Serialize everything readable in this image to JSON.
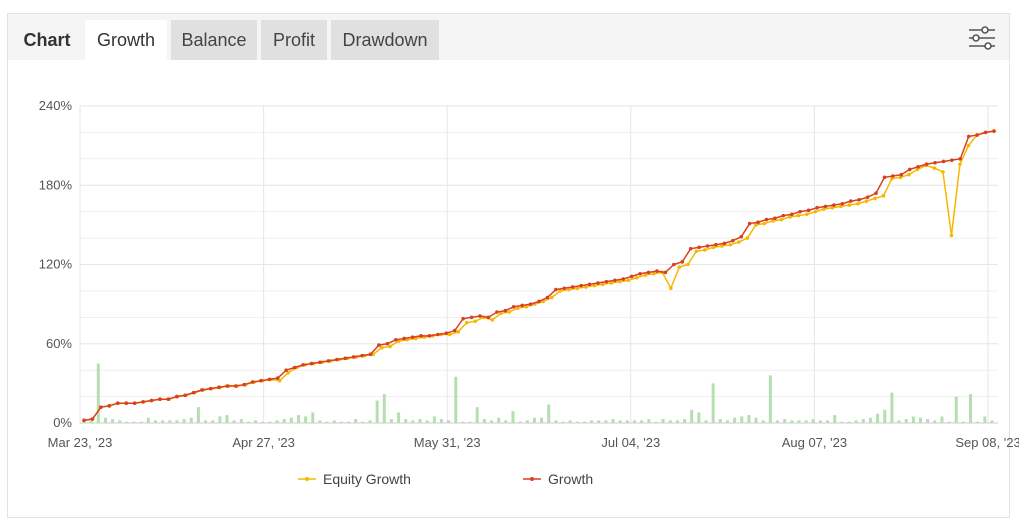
{
  "tabs": {
    "chart": "Chart",
    "growth": "Growth",
    "balance": "Balance",
    "profit": "Profit",
    "drawdown": "Drawdown"
  },
  "settings_icon": "sliders-icon",
  "colors": {
    "equity": "#f5b800",
    "growth": "#d9401f",
    "bars": "#b5dfb0",
    "grid": "#e6e6e6"
  },
  "chart_data": {
    "type": "line",
    "ylim": [
      0,
      240
    ],
    "yticks": [
      "240%",
      "180%",
      "120%",
      "60%",
      "0%"
    ],
    "xticks": [
      "Mar 23, '23",
      "Apr 27, '23",
      "May 31, '23",
      "Jul 04, '23",
      "Aug 07, '23",
      "Sep 08, '23"
    ],
    "grid": true,
    "legend_position": "bottom",
    "series": [
      {
        "name": "Equity Growth",
        "values": [
          2,
          3,
          12,
          13,
          15,
          15,
          15,
          16,
          17,
          18,
          18,
          20,
          21,
          23,
          25,
          26,
          27,
          28,
          28,
          29,
          31,
          32,
          33,
          32,
          38,
          42,
          44,
          45,
          46,
          47,
          48,
          49,
          50,
          51,
          52,
          57,
          58,
          62,
          63,
          64,
          65,
          66,
          67,
          67,
          69,
          76,
          77,
          80,
          78,
          83,
          84,
          87,
          88,
          90,
          92,
          95,
          100,
          101,
          102,
          103,
          104,
          105,
          106,
          107,
          108,
          110,
          112,
          113,
          114,
          102,
          118,
          120,
          130,
          131,
          133,
          134,
          135,
          137,
          140,
          150,
          151,
          153,
          154,
          156,
          157,
          158,
          160,
          162,
          163,
          164,
          165,
          166,
          168,
          170,
          172,
          185,
          186,
          188,
          192,
          195,
          193,
          190,
          142,
          196,
          210,
          218,
          220,
          221
        ]
      },
      {
        "name": "Growth",
        "values": [
          2,
          3,
          12,
          13,
          15,
          15,
          15,
          16,
          17,
          18,
          18,
          20,
          21,
          23,
          25,
          26,
          27,
          28,
          28,
          29,
          31,
          32,
          33,
          34,
          40,
          42,
          44,
          45,
          46,
          47,
          48,
          49,
          50,
          51,
          52,
          59,
          60,
          63,
          64,
          65,
          66,
          66,
          67,
          68,
          70,
          79,
          80,
          81,
          80,
          84,
          85,
          88,
          89,
          90,
          92,
          95,
          101,
          102,
          103,
          104,
          105,
          106,
          107,
          108,
          109,
          111,
          113,
          114,
          115,
          114,
          120,
          122,
          132,
          133,
          134,
          135,
          136,
          138,
          141,
          151,
          152,
          154,
          155,
          157,
          158,
          160,
          161,
          163,
          164,
          165,
          166,
          168,
          169,
          171,
          174,
          186,
          187,
          188,
          192,
          194,
          196,
          197,
          198,
          199,
          200,
          217,
          218,
          220,
          221
        ]
      }
    ],
    "volume_bars": [
      3,
      2,
      45,
      4,
      3,
      2,
      1,
      1,
      1,
      4,
      2,
      2,
      2,
      2,
      3,
      4,
      12,
      2,
      2,
      5,
      6,
      2,
      3,
      1,
      2,
      1,
      1,
      2,
      3,
      4,
      6,
      5,
      8,
      2,
      1,
      2,
      1,
      1,
      3,
      1,
      2,
      17,
      22,
      3,
      8,
      3,
      2,
      3,
      2,
      5,
      3,
      2,
      35,
      1,
      1,
      12,
      3,
      2,
      4,
      2,
      9,
      1,
      2,
      4,
      4,
      14,
      2,
      1,
      2,
      1,
      1,
      2,
      2,
      2,
      3,
      2,
      2,
      2,
      2,
      3,
      1,
      3,
      2,
      2,
      3,
      10,
      8,
      2,
      30,
      3,
      2,
      4,
      5,
      6,
      4,
      2,
      36,
      2,
      3,
      2,
      2,
      2,
      3,
      2,
      2,
      6,
      1,
      1,
      2,
      3,
      4,
      7,
      10,
      23,
      2,
      3,
      5,
      4,
      3,
      2,
      5,
      1,
      20,
      1,
      22,
      1,
      5,
      2
    ],
    "legend": [
      "Equity Growth",
      "Growth"
    ]
  }
}
